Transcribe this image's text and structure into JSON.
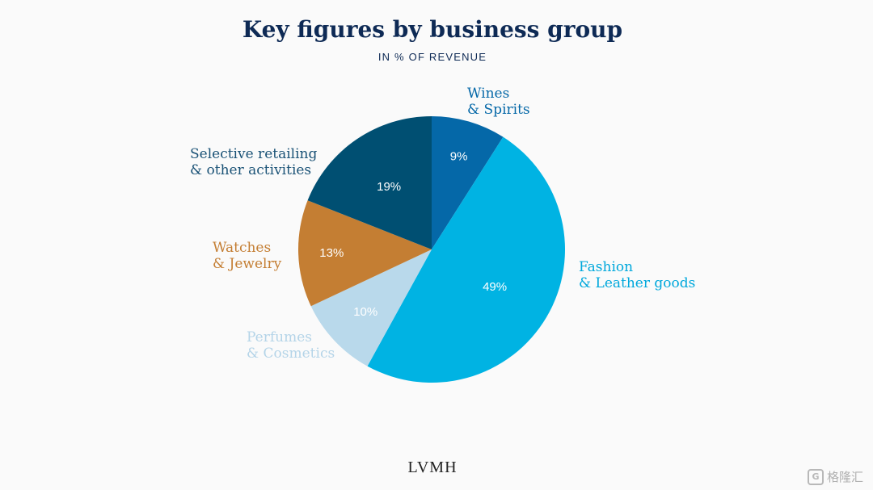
{
  "title": "Key figures by business group",
  "subtitle": "IN % OF REVENUE",
  "footer": {
    "logo": "LVMH"
  },
  "watermark": {
    "icon": "G",
    "text": "格隆汇"
  },
  "chart_data": {
    "type": "pie",
    "title": "Key figures by business group",
    "subtitle": "IN % OF REVENUE",
    "start": "12 o'clock, clockwise",
    "slices": [
      {
        "label_lines": [
          "Wines",
          "& Spirits"
        ],
        "value": 9,
        "value_label": "9%",
        "color": "#0568a8",
        "label_color": "#0568a8"
      },
      {
        "label_lines": [
          "Fashion",
          "& Leather goods"
        ],
        "value": 49,
        "value_label": "49%",
        "color": "#00b3e3",
        "label_color": "#00a8dc"
      },
      {
        "label_lines": [
          "Perfumes",
          "& Cosmetics"
        ],
        "value": 10,
        "value_label": "10%",
        "color": "#b9d9eb",
        "label_color": "#b4d4e8"
      },
      {
        "label_lines": [
          "Watches",
          "& Jewelry"
        ],
        "value": 13,
        "value_label": "13%",
        "color": "#c47e33",
        "label_color": "#c47e33"
      },
      {
        "label_lines": [
          "Selective retailing",
          "& other activities"
        ],
        "value": 19,
        "value_label": "19%",
        "color": "#004f72",
        "label_color": "#1a5276"
      }
    ]
  }
}
